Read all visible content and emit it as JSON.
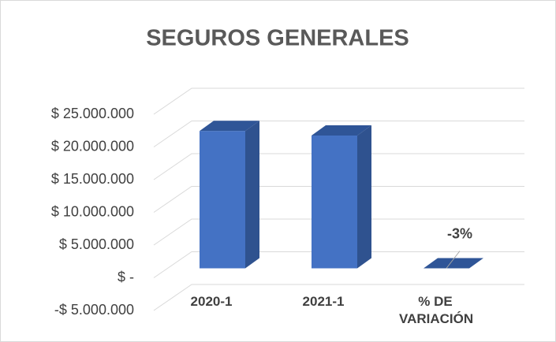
{
  "chart_data": {
    "type": "bar",
    "title": "SEGUROS GENERALES",
    "categories": [
      "2020-1",
      "2021-1",
      "% DE VARIACIÓN"
    ],
    "values": [
      21000000,
      20300000,
      -3
    ],
    "value_labels": [
      null,
      null,
      "-3%"
    ],
    "color": "#4472c4",
    "ylim": [
      -5000000,
      25000000
    ],
    "yticks": [
      {
        "value": -5000000,
        "label": "-$ 5.000.000"
      },
      {
        "value": 0,
        "label": "$ -"
      },
      {
        "value": 5000000,
        "label": "$ 5.000.000"
      },
      {
        "value": 10000000,
        "label": "$ 10.000.000"
      },
      {
        "value": 15000000,
        "label": "$ 15.000.000"
      },
      {
        "value": 20000000,
        "label": "$ 20.000.000"
      },
      {
        "value": 25000000,
        "label": "$ 25.000.000"
      }
    ],
    "grid": true
  }
}
